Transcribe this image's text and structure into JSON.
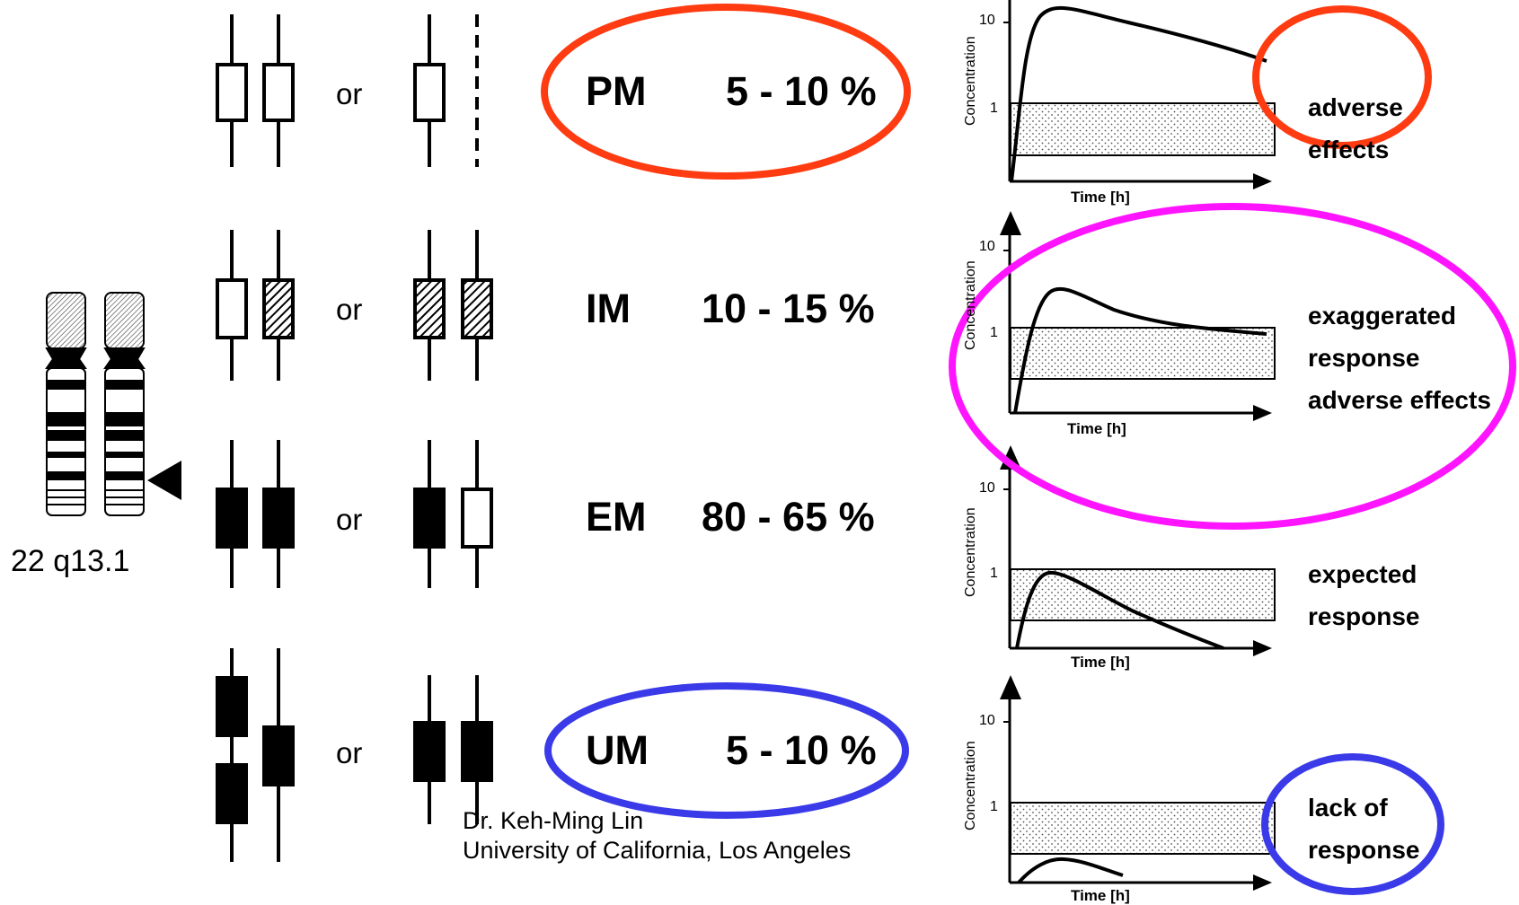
{
  "chromosome": {
    "label": "22 q13.1"
  },
  "or_label": "or",
  "phenotypes": [
    {
      "code": "PM",
      "frequency": "5 - 10 %",
      "response": [
        "adverse",
        "effects"
      ]
    },
    {
      "code": "IM",
      "frequency": "10 - 15 %",
      "response": [
        "exaggerated",
        "response",
        "adverse effects"
      ]
    },
    {
      "code": "EM",
      "frequency": "80 - 65 %",
      "response": [
        "expected",
        "response"
      ]
    },
    {
      "code": "UM",
      "frequency": "5 - 10 %",
      "response": [
        "lack of",
        "response"
      ]
    }
  ],
  "plot_labels": {
    "y_axis": "Concentration",
    "x_axis": "Time [h]",
    "tick_10": "10",
    "tick_1": "1"
  },
  "credit": {
    "name": "Dr. Keh-Ming Lin",
    "affiliation": "University of California, Los Angeles"
  },
  "colors": {
    "pm_circle": "#ff3b12",
    "im_circle": "#ff14ff",
    "um_circle": "#3a3ae8",
    "ink": "#000000"
  },
  "chart_data": [
    {
      "type": "line",
      "x_axis_label": "Time [h]",
      "y_axis_label": "Concentration",
      "y_ticks": [
        "1",
        "10"
      ],
      "therapeutic_window": true,
      "curve_shape": "high peak, slow decline above window"
    },
    {
      "type": "line",
      "x_axis_label": "Time [h]",
      "y_axis_label": "Concentration",
      "y_ticks": [
        "1",
        "10"
      ],
      "therapeutic_window": true,
      "curve_shape": "moderate peak, decline to upper edge of window"
    },
    {
      "type": "line",
      "x_axis_label": "Time [h]",
      "y_axis_label": "Concentration",
      "y_ticks": [
        "1",
        "10"
      ],
      "therapeutic_window": true,
      "curve_shape": "peak within window, decline to baseline"
    },
    {
      "type": "line",
      "x_axis_label": "Time [h]",
      "y_axis_label": "Concentration",
      "y_ticks": [
        "1",
        "10"
      ],
      "therapeutic_window": true,
      "curve_shape": "low peak below window"
    }
  ]
}
